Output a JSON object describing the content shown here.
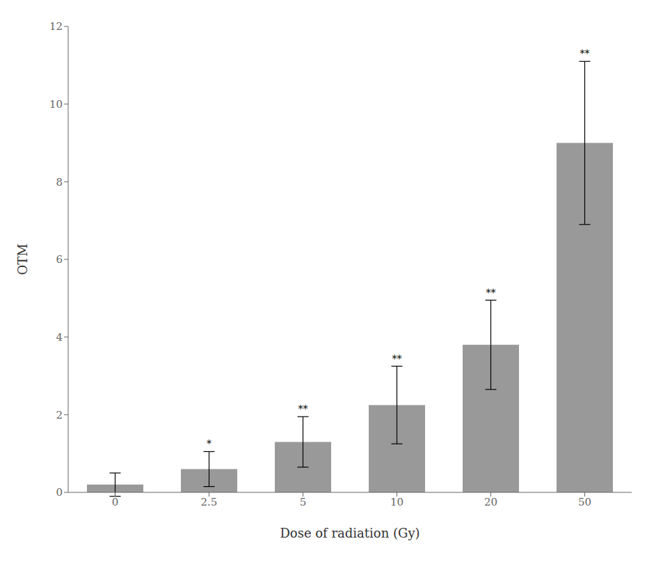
{
  "chart_data": {
    "type": "bar",
    "categories": [
      "0",
      "2.5",
      "5",
      "10",
      "20",
      "50"
    ],
    "values": [
      0.2,
      0.6,
      1.3,
      2.25,
      3.8,
      9.0
    ],
    "errors": [
      0.3,
      0.45,
      0.65,
      1.0,
      1.15,
      2.1
    ],
    "significance": [
      null,
      "*",
      "**",
      "**",
      "**",
      "**"
    ],
    "color": "#999999",
    "xlabel": "Dose of radiation (Gy)",
    "ylabel": "OTM",
    "ylim": [
      0,
      12
    ],
    "yticks": [
      0,
      2,
      4,
      6,
      8,
      10,
      12
    ],
    "grid": false
  }
}
